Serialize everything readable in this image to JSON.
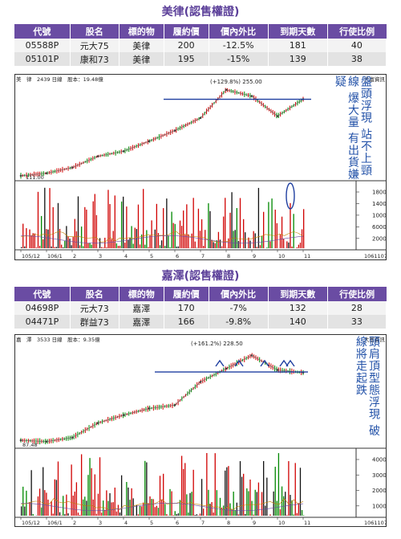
{
  "section1": {
    "title": "美律(認售權證)",
    "headers": [
      "代號",
      "股名",
      "標的物",
      "履約價",
      "價內外比",
      "到期天數",
      "行使比例"
    ],
    "rows": [
      [
        "05588P",
        "元大75",
        "美律",
        "200",
        "-12.5%",
        "181",
        "40"
      ],
      [
        "05101P",
        "康和73",
        "美律",
        "195",
        "-15%",
        "139",
        "38"
      ]
    ]
  },
  "section2": {
    "title": "嘉澤(認售權證)",
    "headers": [
      "代號",
      "股名",
      "標的物",
      "履約價",
      "價內外比",
      "到期天數",
      "行使比例"
    ],
    "rows": [
      [
        "04698P",
        "元大73",
        "嘉澤",
        "170",
        "-7%",
        "132",
        "28"
      ],
      [
        "04471P",
        "群益73",
        "嘉澤",
        "166",
        "-9.8%",
        "140",
        "33"
      ]
    ]
  },
  "chart_data": [
    {
      "type": "line",
      "header": "美　律　2439 日線　股本：19.48億",
      "brand": "大富資訊",
      "x_tick_labels": [
        "105/12",
        "106/1",
        "2",
        "3",
        "4",
        "5",
        "6",
        "7",
        "8",
        "9",
        "10",
        "11"
      ],
      "date_footer": "1061107",
      "high_annotation": "(+129.8%) 255.00",
      "low_annotation": "111.00",
      "volume_tick_labels": [
        "18000",
        "14000",
        "10000",
        "6000",
        "2000"
      ],
      "annotation_lines": [
        "盤頭浮現",
        "站不上頸線",
        "爆大量 有出貨嫌疑"
      ],
      "price_series": {
        "x": [
          "105/12",
          "106/1",
          "2",
          "3",
          "4",
          "5",
          "6",
          "7",
          "8",
          "9",
          "10",
          "11"
        ],
        "values": [
          113,
          117,
          126,
          144,
          152,
          168,
          185,
          205,
          250,
          240,
          208,
          235
        ]
      },
      "neckline": 235,
      "ylim": [
        105,
        260
      ],
      "volume_highlight_month": "10"
    },
    {
      "type": "line",
      "header": "嘉　澤　3533 日線　股本：9.35億",
      "brand": "大富資訊",
      "x_tick_labels": [
        "105/12",
        "106/1",
        "2",
        "3",
        "4",
        "5",
        "6",
        "7",
        "8",
        "9",
        "10",
        "11"
      ],
      "date_footer": "1061107",
      "high_annotation": "(+161.2%) 228.50",
      "low_annotation": "87.48",
      "volume_tick_labels": [
        "4000",
        "3000",
        "2000",
        "1000"
      ],
      "annotation_lines": [
        "頭肩頂型態浮現",
        "破線將走起跌"
      ],
      "price_series": {
        "x": [
          "105/12",
          "106/1",
          "2",
          "3",
          "4",
          "5",
          "6",
          "7",
          "8",
          "9",
          "10",
          "11"
        ],
        "values": [
          92,
          90,
          96,
          118,
          130,
          140,
          145,
          180,
          200,
          220,
          198,
          194
        ]
      },
      "neckline": 195,
      "ylim": [
        80,
        235
      ]
    }
  ]
}
